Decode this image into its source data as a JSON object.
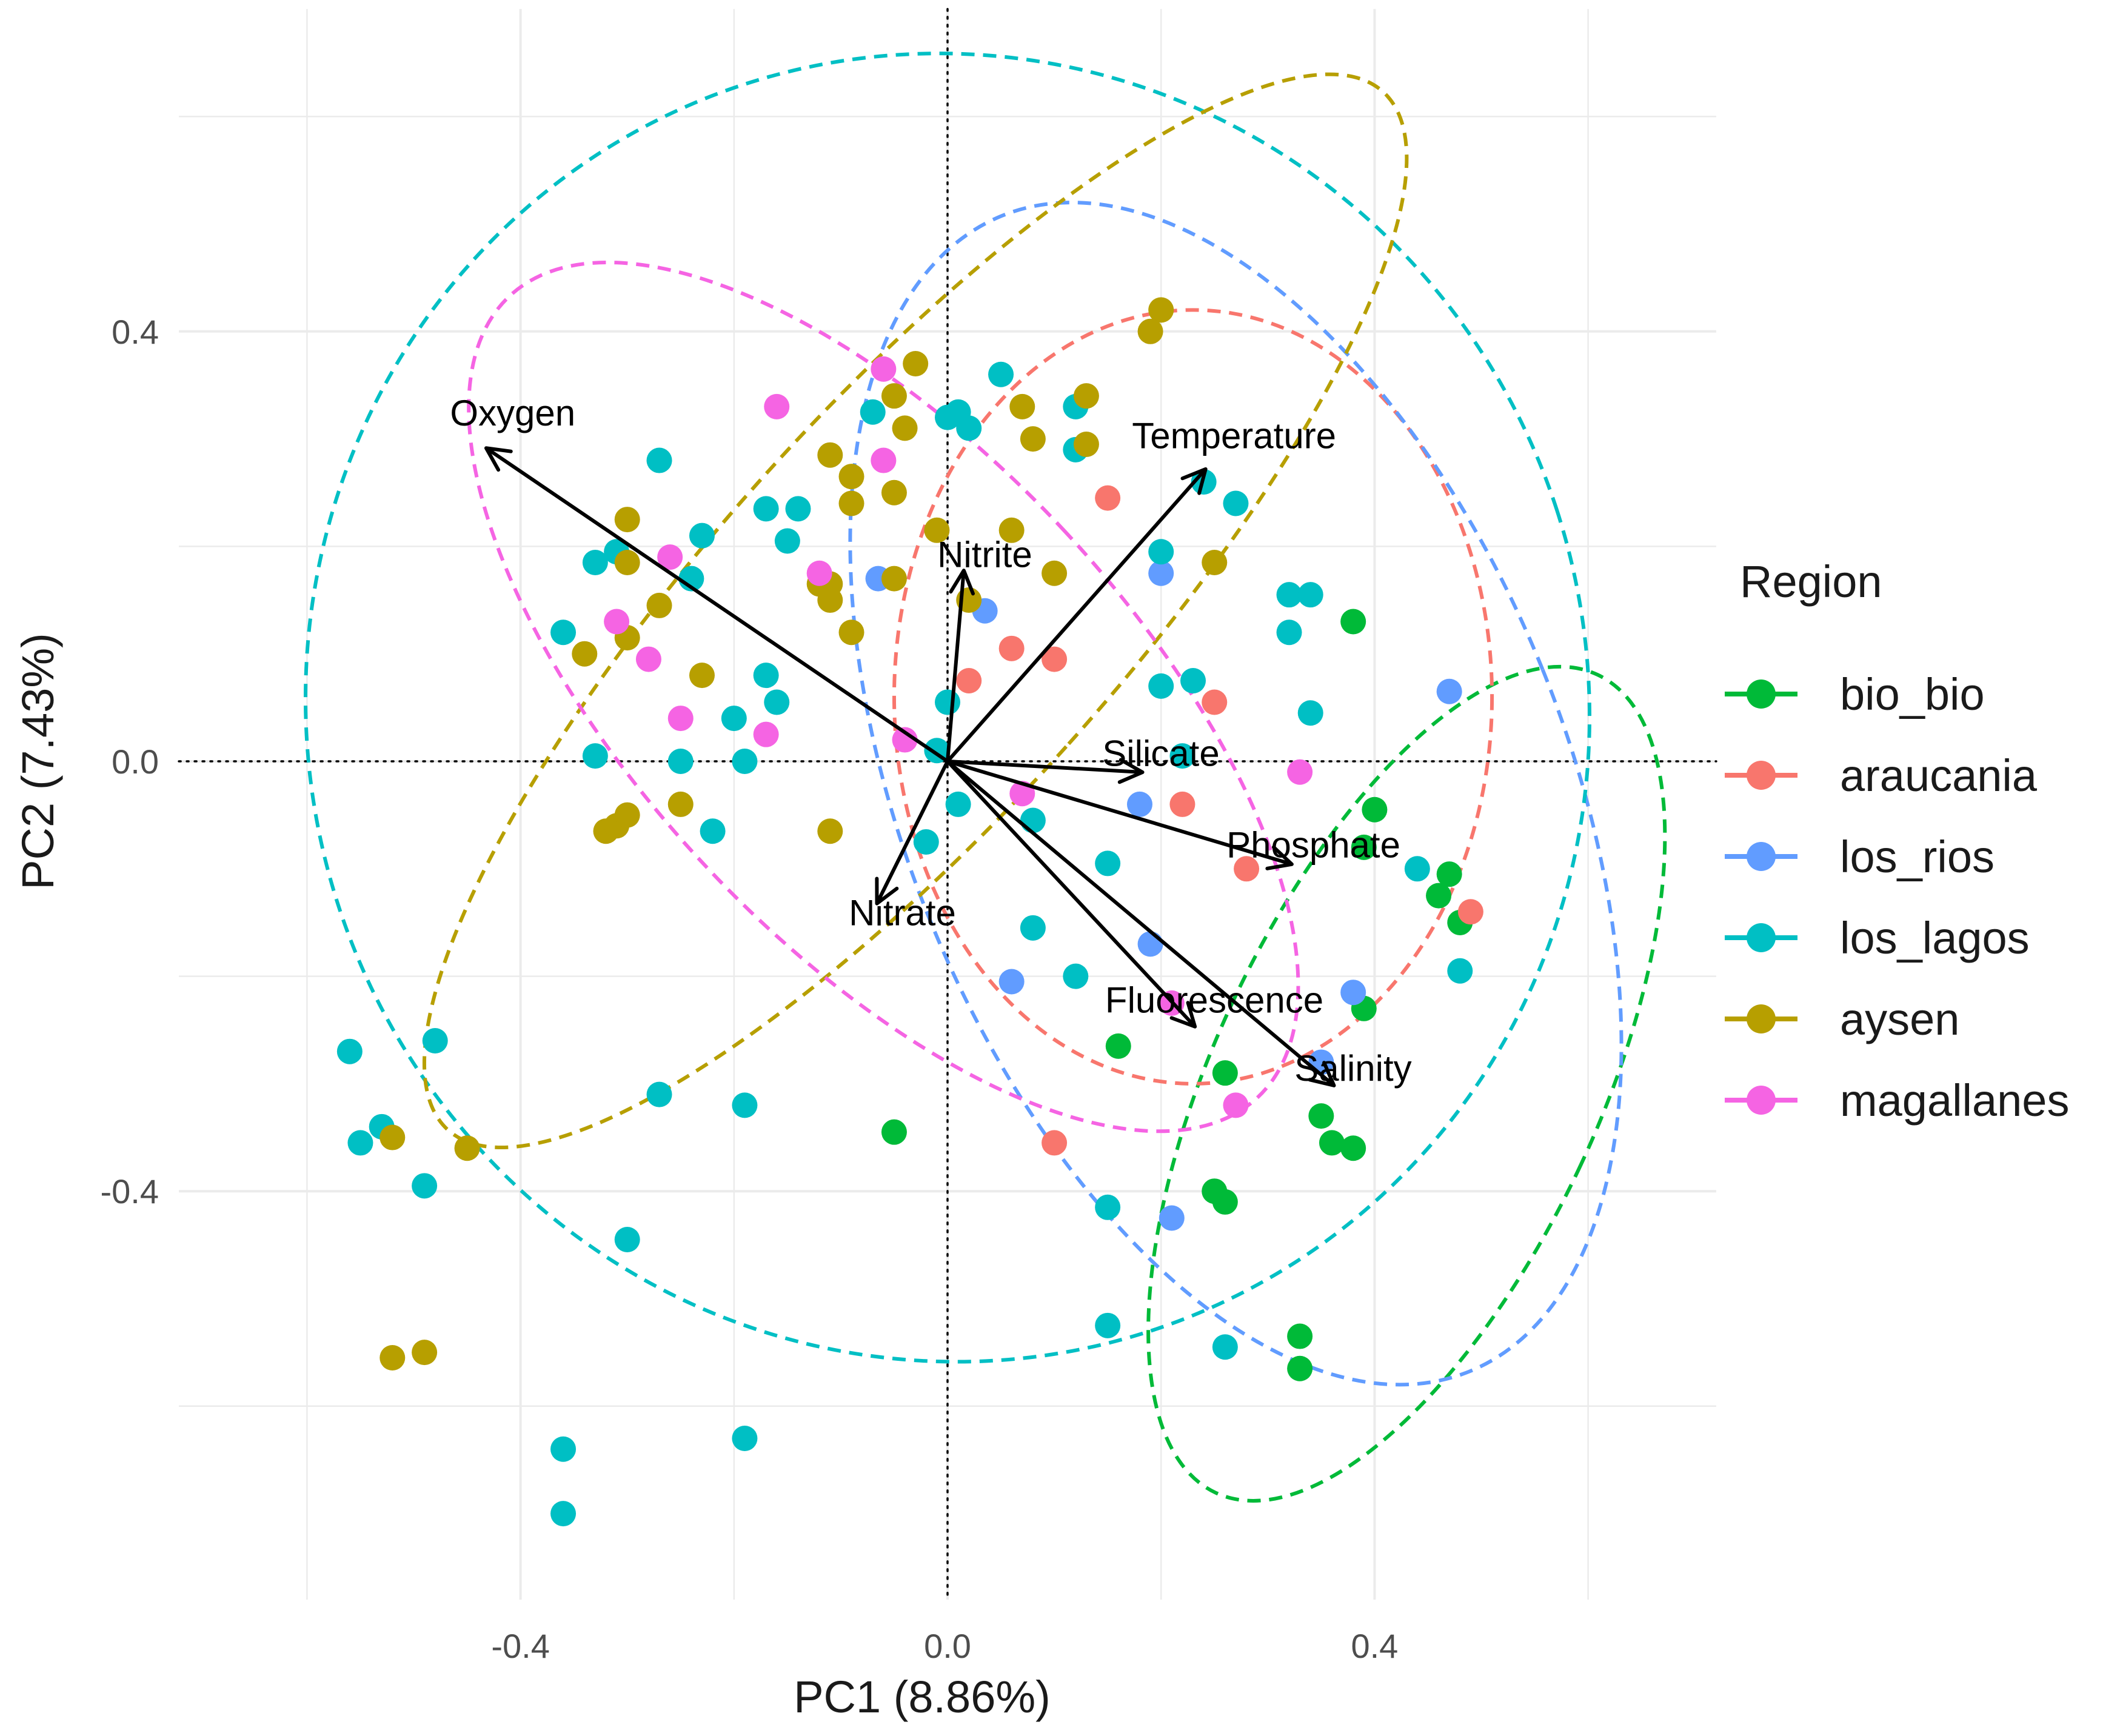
{
  "chart_data": {
    "type": "scatter",
    "subtype": "pca-biplot",
    "xlabel": "PC1 (8.86%)",
    "ylabel": "PC2 (7.43%)",
    "xlim": [
      -0.72,
      0.72
    ],
    "ylim": [
      -0.78,
      0.7
    ],
    "x_ticks": [
      {
        "value": -0.4,
        "label": "-0.4"
      },
      {
        "value": 0.0,
        "label": "0.0"
      },
      {
        "value": 0.4,
        "label": "0.4"
      }
    ],
    "y_ticks": [
      {
        "value": -0.4,
        "label": "-0.4"
      },
      {
        "value": 0.0,
        "label": "0.0"
      },
      {
        "value": 0.4,
        "label": "0.4"
      }
    ],
    "grid": true,
    "zero_lines": true,
    "legend": {
      "title": "Region",
      "placement": "right",
      "entries": [
        {
          "name": "bio_bio",
          "label": "bio_bio",
          "color": "#00BA38"
        },
        {
          "name": "araucania",
          "label": "araucania",
          "color": "#F8766D"
        },
        {
          "name": "los_rios",
          "label": "los_rios",
          "color": "#619CFF"
        },
        {
          "name": "los_lagos",
          "label": "los_lagos",
          "color": "#00BFC4"
        },
        {
          "name": "aysen",
          "label": "aysen",
          "color": "#B79F00"
        },
        {
          "name": "magallanes",
          "label": "magallanes",
          "color": "#F564E3"
        }
      ]
    },
    "loadings": [
      {
        "name": "Oxygen",
        "x": -0.43,
        "y": 0.29
      },
      {
        "name": "Temperature",
        "x": 0.24,
        "y": 0.27
      },
      {
        "name": "Nitrite",
        "x": 0.015,
        "y": 0.175
      },
      {
        "name": "Silicate",
        "x": 0.18,
        "y": -0.01
      },
      {
        "name": "Phosphate",
        "x": 0.32,
        "y": -0.095
      },
      {
        "name": "Nitrate",
        "x": -0.065,
        "y": -0.13
      },
      {
        "name": "Fluorescence",
        "x": 0.23,
        "y": -0.245
      },
      {
        "name": "Salinity",
        "x": 0.36,
        "y": -0.3
      }
    ],
    "ellipses": [
      {
        "group": "bio_bio",
        "cx": 0.43,
        "cy": -0.3,
        "rx": 0.18,
        "ry": 0.42,
        "rot": 25
      },
      {
        "group": "araucania",
        "cx": 0.23,
        "cy": 0.06,
        "rx": 0.28,
        "ry": 0.36,
        "rot": 0
      },
      {
        "group": "los_rios",
        "cx": 0.27,
        "cy": -0.03,
        "rx": 0.31,
        "ry": 0.58,
        "rot": -22
      },
      {
        "group": "los_lagos",
        "cx": 0.0,
        "cy": 0.05,
        "rx": 0.6,
        "ry": 0.61,
        "rot": -18
      },
      {
        "group": "aysen",
        "cx": -0.03,
        "cy": 0.14,
        "rx": 0.19,
        "ry": 0.65,
        "rot": 42
      },
      {
        "group": "magallanes",
        "cx": -0.06,
        "cy": 0.06,
        "rx": 0.23,
        "ry": 0.51,
        "rot": -43
      }
    ],
    "points": {
      "bio_bio": [
        [
          0.38,
          0.13
        ],
        [
          0.4,
          -0.045
        ],
        [
          0.39,
          -0.08
        ],
        [
          0.46,
          -0.125
        ],
        [
          0.47,
          -0.105
        ],
        [
          0.48,
          -0.15
        ],
        [
          0.39,
          -0.23
        ],
        [
          0.16,
          -0.265
        ],
        [
          0.26,
          -0.29
        ],
        [
          0.35,
          -0.33
        ],
        [
          0.36,
          -0.355
        ],
        [
          0.38,
          -0.36
        ],
        [
          0.25,
          -0.4
        ],
        [
          0.26,
          -0.41
        ],
        [
          0.33,
          -0.535
        ],
        [
          0.33,
          -0.565
        ],
        [
          -0.05,
          -0.345
        ]
      ],
      "araucania": [
        [
          0.15,
          0.245
        ],
        [
          0.06,
          0.105
        ],
        [
          0.1,
          0.095
        ],
        [
          0.02,
          0.075
        ],
        [
          0.25,
          0.055
        ],
        [
          0.22,
          -0.04
        ],
        [
          0.28,
          -0.1
        ],
        [
          0.49,
          -0.14
        ],
        [
          0.1,
          -0.355
        ]
      ],
      "los_rios": [
        [
          -0.065,
          0.17
        ],
        [
          0.035,
          0.14
        ],
        [
          0.2,
          0.175
        ],
        [
          0.18,
          -0.04
        ],
        [
          0.47,
          0.065
        ],
        [
          0.06,
          -0.205
        ],
        [
          0.19,
          -0.17
        ],
        [
          0.38,
          -0.215
        ],
        [
          0.35,
          -0.28
        ],
        [
          0.21,
          -0.425
        ]
      ],
      "los_lagos": [
        [
          0.05,
          0.36
        ],
        [
          0.0,
          0.32
        ],
        [
          0.01,
          0.325
        ],
        [
          -0.07,
          0.325
        ],
        [
          0.02,
          0.31
        ],
        [
          -0.27,
          0.28
        ],
        [
          0.12,
          0.33
        ],
        [
          0.12,
          0.29
        ],
        [
          -0.17,
          0.235
        ],
        [
          -0.14,
          0.235
        ],
        [
          -0.15,
          0.205
        ],
        [
          -0.23,
          0.21
        ],
        [
          -0.31,
          0.195
        ],
        [
          -0.33,
          0.185
        ],
        [
          0.24,
          0.26
        ],
        [
          0.27,
          0.24
        ],
        [
          0.2,
          0.195
        ],
        [
          0.32,
          0.155
        ],
        [
          0.34,
          0.155
        ],
        [
          0.32,
          0.12
        ],
        [
          -0.24,
          0.17
        ],
        [
          -0.36,
          0.12
        ],
        [
          -0.17,
          0.08
        ],
        [
          -0.16,
          0.055
        ],
        [
          -0.2,
          0.04
        ],
        [
          0.0,
          0.055
        ],
        [
          0.2,
          0.07
        ],
        [
          0.23,
          0.075
        ],
        [
          0.34,
          0.045
        ],
        [
          -0.33,
          0.005
        ],
        [
          -0.25,
          0.0
        ],
        [
          -0.19,
          0.0
        ],
        [
          -0.01,
          0.01
        ],
        [
          0.22,
          0.005
        ],
        [
          0.01,
          -0.04
        ],
        [
          0.08,
          -0.055
        ],
        [
          -0.22,
          -0.065
        ],
        [
          -0.02,
          -0.075
        ],
        [
          0.15,
          -0.095
        ],
        [
          0.44,
          -0.1
        ],
        [
          0.08,
          -0.155
        ],
        [
          0.12,
          -0.2
        ],
        [
          0.48,
          -0.195
        ],
        [
          -0.48,
          -0.26
        ],
        [
          -0.56,
          -0.27
        ],
        [
          -0.53,
          -0.34
        ],
        [
          -0.55,
          -0.355
        ],
        [
          -0.27,
          -0.31
        ],
        [
          -0.19,
          -0.32
        ],
        [
          -0.49,
          -0.395
        ],
        [
          -0.3,
          -0.445
        ],
        [
          0.15,
          -0.415
        ],
        [
          0.15,
          -0.525
        ],
        [
          0.26,
          -0.545
        ],
        [
          -0.19,
          -0.63
        ],
        [
          -0.36,
          -0.64
        ],
        [
          -0.36,
          -0.7
        ]
      ],
      "aysen": [
        [
          0.2,
          0.42
        ],
        [
          0.19,
          0.4
        ],
        [
          -0.03,
          0.37
        ],
        [
          -0.05,
          0.34
        ],
        [
          -0.04,
          0.31
        ],
        [
          0.07,
          0.33
        ],
        [
          0.08,
          0.3
        ],
        [
          0.13,
          0.34
        ],
        [
          0.13,
          0.295
        ],
        [
          -0.11,
          0.285
        ],
        [
          -0.09,
          0.265
        ],
        [
          -0.09,
          0.24
        ],
        [
          -0.05,
          0.25
        ],
        [
          -0.01,
          0.215
        ],
        [
          0.06,
          0.215
        ],
        [
          -0.3,
          0.225
        ],
        [
          -0.3,
          0.185
        ],
        [
          -0.27,
          0.145
        ],
        [
          0.1,
          0.175
        ],
        [
          -0.11,
          0.165
        ],
        [
          -0.12,
          0.165
        ],
        [
          -0.11,
          0.15
        ],
        [
          0.02,
          0.15
        ],
        [
          0.25,
          0.185
        ],
        [
          -0.3,
          0.115
        ],
        [
          -0.09,
          0.12
        ],
        [
          -0.34,
          0.1
        ],
        [
          -0.23,
          0.08
        ],
        [
          -0.05,
          0.17
        ],
        [
          -0.32,
          -0.065
        ],
        [
          -0.31,
          -0.06
        ],
        [
          -0.3,
          -0.05
        ],
        [
          -0.25,
          -0.04
        ],
        [
          -0.11,
          -0.065
        ],
        [
          -0.52,
          -0.35
        ],
        [
          -0.45,
          -0.36
        ],
        [
          -0.52,
          -0.555
        ],
        [
          -0.49,
          -0.55
        ]
      ],
      "magallanes": [
        [
          -0.06,
          0.365
        ],
        [
          -0.16,
          0.33
        ],
        [
          -0.06,
          0.28
        ],
        [
          -0.26,
          0.19
        ],
        [
          -0.12,
          0.175
        ],
        [
          -0.31,
          0.13
        ],
        [
          -0.28,
          0.095
        ],
        [
          -0.25,
          0.04
        ],
        [
          -0.17,
          0.025
        ],
        [
          -0.04,
          0.02
        ],
        [
          0.07,
          -0.03
        ],
        [
          0.33,
          -0.01
        ],
        [
          0.21,
          -0.225
        ],
        [
          0.27,
          -0.32
        ]
      ]
    }
  }
}
